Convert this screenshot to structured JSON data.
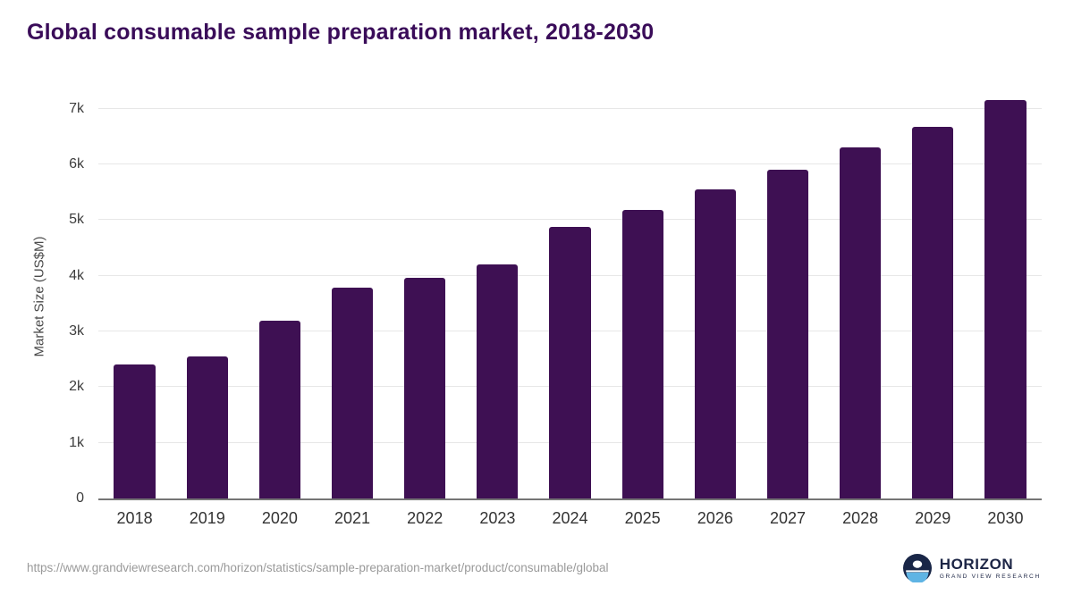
{
  "title": "Global consumable sample preparation market, 2018-2030",
  "source_url": "https://www.grandviewresearch.com/horizon/statistics/sample-preparation-market/product/consumable/global",
  "logo": {
    "name": "HORIZON",
    "subtitle": "GRAND VIEW RESEARCH",
    "icon": "horizon-globe-icon",
    "navy": "#192647",
    "light_blue": "#5fb4e4"
  },
  "chart_data": {
    "type": "bar",
    "title": "Global consumable sample preparation market, 2018-2030",
    "categories": [
      "2018",
      "2019",
      "2020",
      "2021",
      "2022",
      "2023",
      "2024",
      "2025",
      "2026",
      "2027",
      "2028",
      "2029",
      "2030"
    ],
    "values": [
      2400,
      2550,
      3190,
      3780,
      3970,
      4210,
      4870,
      5190,
      5550,
      5910,
      6300,
      6680,
      7150
    ],
    "xlabel": "",
    "ylabel": "Market Size (US$M)",
    "ylim": [
      0,
      7300
    ],
    "yticks": [
      0,
      1000,
      2000,
      3000,
      4000,
      5000,
      6000,
      7000
    ],
    "ytick_labels": [
      "0",
      "1k",
      "2k",
      "3k",
      "4k",
      "5k",
      "6k",
      "7k"
    ],
    "bar_color": "#3e1053",
    "grid": true,
    "legend": "none"
  }
}
